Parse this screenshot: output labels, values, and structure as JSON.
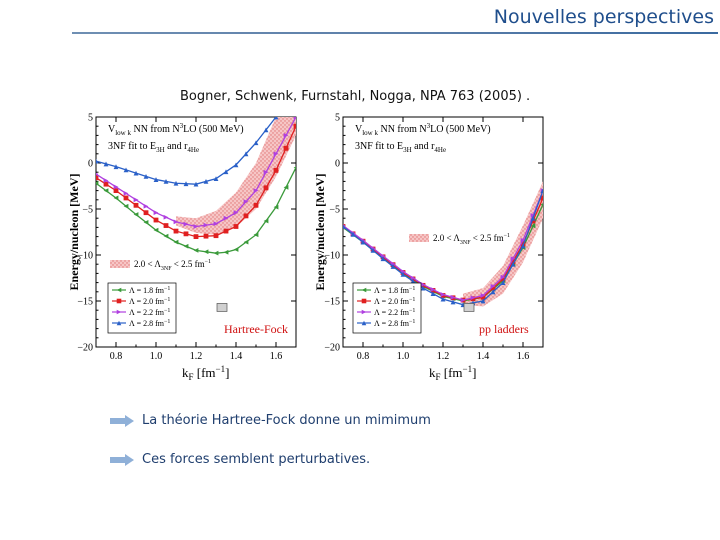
{
  "slide": {
    "title": "Nouvelles perspectives",
    "citation": "Bogner, Schwenk, Furnstahl, Nogga, NPA 763 (2005) .",
    "bullets": [
      "La théorie Hartree-Fock donne un mimimum",
      "Ces forces semblent perturbatives."
    ],
    "colors": {
      "title": "#1f4e8c",
      "bullet": "#1f3e6e"
    },
    "bullet_icon": "right-arrow-icon"
  },
  "chart_data": [
    {
      "type": "line",
      "header_line1": "V  NN  from N LO (500 MeV)",
      "header_sub": "low k",
      "header_sup": "3",
      "header_line2": "3NF fit to E  and r",
      "header_line2_sub1": "3H",
      "header_line2_sub2": "4He",
      "band_label": "2.0 < Λ   < 2.5 fm",
      "band_label_sub": "3NF",
      "band_label_sup": "−1",
      "method_label": "Hartree-Fock",
      "xlabel": "k  [fm  ]",
      "xlabel_sub": "F",
      "xlabel_sup": "−1",
      "ylabel": "Energy/nucleon [MeV]",
      "xlim": [
        0.7,
        1.7
      ],
      "ylim": [
        -20,
        5
      ],
      "xticks": [
        "0.8",
        "1.0",
        "1.2",
        "1.4",
        "1.6"
      ],
      "yticks": [
        "5",
        "0",
        "−5",
        "−10",
        "−15",
        "−20"
      ],
      "legend": [
        {
          "name": "Λ = 1.8 fm",
          "sup": "−1",
          "color": "#3a9a3a",
          "marker": "triangle-left"
        },
        {
          "name": "Λ = 2.0 fm",
          "sup": "−1",
          "color": "#e02020",
          "marker": "square"
        },
        {
          "name": "Λ = 2.2 fm",
          "sup": "−1",
          "color": "#b040e0",
          "marker": "triangle-right"
        },
        {
          "name": "Λ = 2.8 fm",
          "sup": "−1",
          "color": "#2a60c8",
          "marker": "triangle-up"
        }
      ],
      "series": [
        {
          "color": "#3a9a3a",
          "x": [
            0.7,
            0.8,
            0.9,
            1.0,
            1.1,
            1.2,
            1.3,
            1.35,
            1.4,
            1.5,
            1.6,
            1.7
          ],
          "y": [
            -2.2,
            -3.8,
            -5.6,
            -7.3,
            -8.6,
            -9.5,
            -9.8,
            -9.7,
            -9.4,
            -7.8,
            -4.8,
            -0.5
          ]
        },
        {
          "color": "#e02020",
          "x": [
            0.7,
            0.8,
            0.9,
            1.0,
            1.1,
            1.2,
            1.3,
            1.4,
            1.5,
            1.6,
            1.7
          ],
          "y": [
            -1.6,
            -3.0,
            -4.6,
            -6.2,
            -7.4,
            -8.0,
            -7.9,
            -6.9,
            -4.6,
            -0.8,
            4.0
          ]
        },
        {
          "color": "#b040e0",
          "x": [
            0.7,
            0.8,
            0.9,
            1.0,
            1.1,
            1.2,
            1.3,
            1.4,
            1.5,
            1.6,
            1.7
          ],
          "y": [
            -1.2,
            -2.6,
            -4.0,
            -5.4,
            -6.4,
            -6.9,
            -6.6,
            -5.4,
            -3.0,
            1.0,
            5.0
          ]
        },
        {
          "color": "#2a60c8",
          "x": [
            0.7,
            0.8,
            0.9,
            1.0,
            1.1,
            1.2,
            1.3,
            1.4,
            1.5,
            1.6,
            1.7
          ],
          "y": [
            0.2,
            -0.4,
            -1.1,
            -1.8,
            -2.2,
            -2.3,
            -1.7,
            -0.2,
            2.2,
            5.0,
            6.0
          ]
        }
      ],
      "band": {
        "x": [
          1.1,
          1.2,
          1.3,
          1.4,
          1.5,
          1.6,
          1.7
        ],
        "lower": [
          -6.8,
          -7.6,
          -7.8,
          -7.0,
          -5.0,
          -1.5,
          3.0
        ],
        "upper": [
          -5.8,
          -6.0,
          -5.2,
          -3.2,
          0.0,
          5.0,
          5.0
        ]
      }
    },
    {
      "type": "line",
      "header_line1": "V  NN  from N LO (500 MeV)",
      "header_sub": "low k",
      "header_sup": "3",
      "header_line2": "3NF fit to E  and r",
      "header_line2_sub1": "3H",
      "header_line2_sub2": "4He",
      "band_label": "2.0 < Λ   < 2.5 fm",
      "band_label_sub": "3NF",
      "band_label_sup": "−1",
      "method_label": "pp ladders",
      "xlabel": "k  [fm  ]",
      "xlabel_sub": "F",
      "xlabel_sup": "−1",
      "ylabel": "Energy/nucleon [MeV]",
      "xlim": [
        0.7,
        1.7
      ],
      "ylim": [
        -20,
        5
      ],
      "xticks": [
        "0.8",
        "1.0",
        "1.2",
        "1.4",
        "1.6"
      ],
      "yticks": [
        "5",
        "0",
        "−5",
        "−10",
        "−15",
        "−20"
      ],
      "legend": [
        {
          "name": "Λ = 1.8 fm",
          "sup": "−1",
          "color": "#3a9a3a",
          "marker": "triangle-left"
        },
        {
          "name": "Λ = 2.0 fm",
          "sup": "−1",
          "color": "#e02020",
          "marker": "square"
        },
        {
          "name": "Λ = 2.2 fm",
          "sup": "−1",
          "color": "#b040e0",
          "marker": "triangle-right"
        },
        {
          "name": "Λ = 2.8 fm",
          "sup": "−1",
          "color": "#2a60c8",
          "marker": "triangle-up"
        }
      ],
      "series": [
        {
          "color": "#3a9a3a",
          "x": [
            0.7,
            0.8,
            0.9,
            1.0,
            1.1,
            1.2,
            1.3,
            1.4,
            1.5,
            1.6,
            1.7
          ],
          "y": [
            -7.0,
            -8.6,
            -10.3,
            -12.0,
            -13.4,
            -14.5,
            -15.0,
            -14.6,
            -12.8,
            -9.2,
            -4.5
          ]
        },
        {
          "color": "#e02020",
          "x": [
            0.7,
            0.8,
            0.9,
            1.0,
            1.1,
            1.2,
            1.3,
            1.4,
            1.5,
            1.6,
            1.7
          ],
          "y": [
            -6.9,
            -8.5,
            -10.2,
            -11.9,
            -13.3,
            -14.4,
            -14.9,
            -14.6,
            -12.6,
            -8.8,
            -3.8
          ]
        },
        {
          "color": "#b040e0",
          "x": [
            0.7,
            0.8,
            0.9,
            1.0,
            1.1,
            1.2,
            1.3,
            1.4,
            1.5,
            1.6,
            1.7
          ],
          "y": [
            -6.8,
            -8.4,
            -10.1,
            -11.8,
            -13.2,
            -14.3,
            -14.9,
            -14.4,
            -12.4,
            -8.4,
            -3.0
          ]
        },
        {
          "color": "#2a60c8",
          "x": [
            0.7,
            0.8,
            0.9,
            1.0,
            1.1,
            1.2,
            1.3,
            1.4,
            1.5,
            1.6,
            1.7
          ],
          "y": [
            -6.9,
            -8.6,
            -10.4,
            -12.1,
            -13.6,
            -14.8,
            -15.4,
            -15.0,
            -13.0,
            -9.0,
            -3.0
          ]
        }
      ],
      "band": {
        "x": [
          1.3,
          1.4,
          1.5,
          1.6,
          1.7
        ],
        "lower": [
          -15.4,
          -15.6,
          -14.2,
          -10.8,
          -6.0
        ],
        "upper": [
          -14.2,
          -13.6,
          -11.2,
          -6.8,
          -2.0
        ]
      }
    }
  ]
}
